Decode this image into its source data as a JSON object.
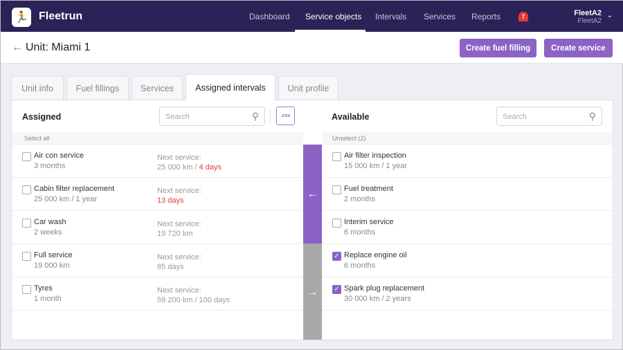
{
  "nav": {
    "brand": "Fleetrun",
    "items": [
      "Dashboard",
      "Service objects",
      "Intervals",
      "Services",
      "Reports"
    ],
    "active": "Service objects",
    "notifications": "7",
    "user": "FleetA2",
    "account": "FleetA2"
  },
  "header": {
    "title": "Unit: Miami 1",
    "buttons": [
      "Create fuel filling",
      "Create service"
    ]
  },
  "tabs": [
    "Unit info",
    "Fuel fillings",
    "Services",
    "Assigned intervals",
    "Unit profile"
  ],
  "assigned": {
    "title": "Assigned",
    "search_placeholder": "Search",
    "csv": ".csv",
    "select_all": "Select all",
    "items": [
      {
        "name": "Air con service",
        "interval": "3 months",
        "label": "Next service:",
        "next": "25 000 km / ",
        "next_red": "4 days"
      },
      {
        "name": "Cabin filter replacement",
        "interval": "25 000 km / 1 year",
        "label": "Next service:",
        "next": "",
        "next_red": "13 days"
      },
      {
        "name": "Car wash",
        "interval": "2 weeks",
        "label": "Next service:",
        "next": "19 720 km",
        "next_red": ""
      },
      {
        "name": "Full service",
        "interval": "19 000 km",
        "label": "Next service:",
        "next": "85 days",
        "next_red": ""
      },
      {
        "name": "Tyres",
        "interval": "1 month",
        "label": "Next service:",
        "next": "59 200 km / 100 days",
        "next_red": ""
      }
    ]
  },
  "available": {
    "title": "Available",
    "search_placeholder": "Search",
    "unselect": "Unselect (2)",
    "items": [
      {
        "name": "Air filter inspection",
        "interval": "15 000 km / 1 year",
        "checked": false
      },
      {
        "name": "Fuel treatment",
        "interval": "2 months",
        "checked": false
      },
      {
        "name": "Interim service",
        "interval": "6 months",
        "checked": false
      },
      {
        "name": "Replace engine oil",
        "interval": "6 months",
        "checked": true
      },
      {
        "name": "Spark plug replacement",
        "interval": "30 000 km / 2 years",
        "checked": true
      }
    ]
  },
  "colors": {
    "nav": "#2b2257",
    "accent": "#8b63c4",
    "warning": "#e53935",
    "disabled": "#a8a8a8"
  }
}
